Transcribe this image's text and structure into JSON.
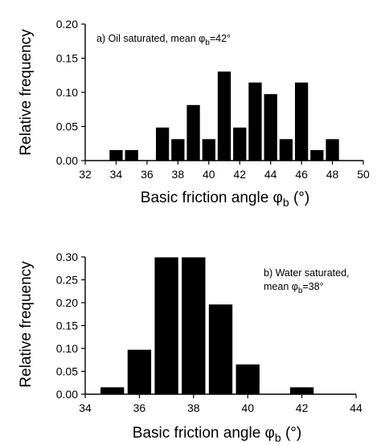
{
  "chart_data": [
    {
      "type": "bar",
      "annotation": {
        "prefix": "a) Oil saturated, mean ",
        "symbol": "φ",
        "subscript": "b",
        "suffix": "=42°"
      },
      "xlabel": {
        "text": "Basic friction angle ",
        "symbol": "φ",
        "subscript": "b",
        "suffix": " (°)"
      },
      "ylabel": "Relative frequency",
      "xlim": [
        32,
        50
      ],
      "ylim": [
        0,
        0.2
      ],
      "xticks": [
        "32",
        "34",
        "36",
        "38",
        "40",
        "42",
        "44",
        "46",
        "48",
        "50"
      ],
      "yticks": [
        "0.00",
        "0.05",
        "0.10",
        "0.15",
        "0.20"
      ],
      "bin_width": 0.9,
      "x": [
        34,
        35,
        37,
        38,
        39,
        40,
        41,
        42,
        43,
        44,
        45,
        46,
        47,
        48
      ],
      "values": [
        0.016,
        0.016,
        0.049,
        0.032,
        0.082,
        0.032,
        0.131,
        0.049,
        0.115,
        0.098,
        0.032,
        0.115,
        0.016,
        0.032
      ]
    },
    {
      "type": "bar",
      "annotation": {
        "line1": "b) Water saturated,",
        "prefix": "mean ",
        "symbol": "φ",
        "subscript": "b",
        "suffix": "=38°"
      },
      "xlabel": {
        "text": "Basic friction angle  ",
        "symbol": "φ",
        "subscript": "b",
        "suffix": " (°)"
      },
      "ylabel": "Relative frequency",
      "xlim": [
        34,
        44
      ],
      "ylim": [
        0,
        0.3
      ],
      "xticks": [
        "34",
        "36",
        "38",
        "40",
        "42",
        "44"
      ],
      "yticks": [
        "0.00",
        "0.05",
        "0.10",
        "0.15",
        "0.20",
        "0.25",
        "0.30"
      ],
      "bin_width": 0.9,
      "x": [
        35,
        36,
        37,
        38,
        39,
        40,
        42
      ],
      "values": [
        0.016,
        0.098,
        0.3,
        0.3,
        0.197,
        0.066,
        0.016
      ]
    }
  ]
}
